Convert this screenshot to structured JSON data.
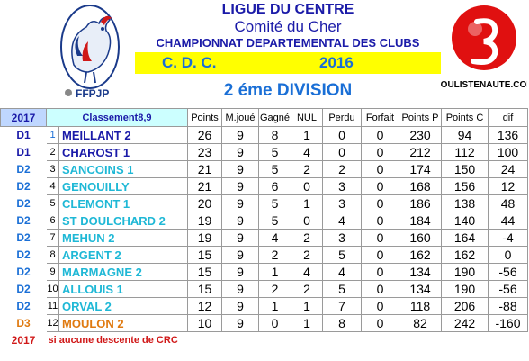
{
  "header": {
    "league": "LIGUE DU CENTRE",
    "committee": "Comité du Cher",
    "championship": "CHAMPIONNAT DEPARTEMENTAL  DES CLUBS",
    "cdc": "C. D. C.",
    "year": "2016",
    "division": "2 éme DIVISION",
    "left_logo_text": "FFPJP",
    "right_logo_text": "BOULISTENAUTE.COM"
  },
  "table": {
    "year_label": "2017",
    "classement_label": "Classement8,9",
    "columns": [
      "Points",
      "M.joué",
      "Gagné",
      "NUL",
      "Perdu",
      "Forfait",
      "Points P",
      "Points C",
      "dif"
    ],
    "rows": [
      {
        "div": "D1",
        "rank": "1",
        "team": "MEILLANT 2",
        "points": "26",
        "mj": "9",
        "g": "8",
        "nul": "1",
        "p": "0",
        "f": "0",
        "pp": "230",
        "pc": "94",
        "dif": "136",
        "color": "#1a1aa8",
        "rank_color": "#1a6fd6",
        "team_color": "#1a1aa8"
      },
      {
        "div": "D1",
        "rank": "2",
        "team": "CHAROST 1",
        "points": "23",
        "mj": "9",
        "g": "5",
        "nul": "4",
        "p": "0",
        "f": "0",
        "pp": "212",
        "pc": "112",
        "dif": "100",
        "color": "#1a1aa8",
        "rank_color": "#000000",
        "team_color": "#1a1aa8"
      },
      {
        "div": "D2",
        "rank": "3",
        "team": "SANCOINS 1",
        "points": "21",
        "mj": "9",
        "g": "5",
        "nul": "2",
        "p": "2",
        "f": "0",
        "pp": "174",
        "pc": "150",
        "dif": "24",
        "color": "#1a6fd6",
        "rank_color": "#000000",
        "team_color": "#1fb8d6"
      },
      {
        "div": "D2",
        "rank": "4",
        "team": "GENOUILLY",
        "points": "21",
        "mj": "9",
        "g": "6",
        "nul": "0",
        "p": "3",
        "f": "0",
        "pp": "168",
        "pc": "156",
        "dif": "12",
        "color": "#1a6fd6",
        "rank_color": "#000000",
        "team_color": "#1fb8d6"
      },
      {
        "div": "D2",
        "rank": "5",
        "team": "CLEMONT 1",
        "points": "20",
        "mj": "9",
        "g": "5",
        "nul": "1",
        "p": "3",
        "f": "0",
        "pp": "186",
        "pc": "138",
        "dif": "48",
        "color": "#1a6fd6",
        "rank_color": "#000000",
        "team_color": "#1fb8d6"
      },
      {
        "div": "D2",
        "rank": "6",
        "team": "ST DOULCHARD 2",
        "points": "19",
        "mj": "9",
        "g": "5",
        "nul": "0",
        "p": "4",
        "f": "0",
        "pp": "184",
        "pc": "140",
        "dif": "44",
        "color": "#1a6fd6",
        "rank_color": "#000000",
        "team_color": "#1fb8d6"
      },
      {
        "div": "D2",
        "rank": "7",
        "team": "MEHUN 2",
        "points": "19",
        "mj": "9",
        "g": "4",
        "nul": "2",
        "p": "3",
        "f": "0",
        "pp": "160",
        "pc": "164",
        "dif": "-4",
        "color": "#1a6fd6",
        "rank_color": "#000000",
        "team_color": "#1fb8d6"
      },
      {
        "div": "D2",
        "rank": "8",
        "team": "ARGENT 2",
        "points": "15",
        "mj": "9",
        "g": "2",
        "nul": "2",
        "p": "5",
        "f": "0",
        "pp": "162",
        "pc": "162",
        "dif": "0",
        "color": "#1a6fd6",
        "rank_color": "#000000",
        "team_color": "#1fb8d6"
      },
      {
        "div": "D2",
        "rank": "9",
        "team": "MARMAGNE 2",
        "points": "15",
        "mj": "9",
        "g": "1",
        "nul": "4",
        "p": "4",
        "f": "0",
        "pp": "134",
        "pc": "190",
        "dif": "-56",
        "color": "#1a6fd6",
        "rank_color": "#000000",
        "team_color": "#1fb8d6"
      },
      {
        "div": "D2",
        "rank": "10",
        "team": "ALLOUIS 1",
        "points": "15",
        "mj": "9",
        "g": "2",
        "nul": "2",
        "p": "5",
        "f": "0",
        "pp": "134",
        "pc": "190",
        "dif": "-56",
        "color": "#1a6fd6",
        "rank_color": "#000000",
        "team_color": "#1fb8d6"
      },
      {
        "div": "D2",
        "rank": "11",
        "team": "ORVAL 2",
        "points": "12",
        "mj": "9",
        "g": "1",
        "nul": "1",
        "p": "7",
        "f": "0",
        "pp": "118",
        "pc": "206",
        "dif": "-88",
        "color": "#1a6fd6",
        "rank_color": "#000000",
        "team_color": "#1fb8d6"
      },
      {
        "div": "D3",
        "rank": "12",
        "team": "MOULON 2",
        "points": "10",
        "mj": "9",
        "g": "0",
        "nul": "1",
        "p": "8",
        "f": "0",
        "pp": "82",
        "pc": "242",
        "dif": "-160",
        "color": "#e07a10",
        "rank_color": "#000000",
        "team_color": "#e07a10"
      }
    ],
    "footer_year": "2017",
    "footer_note": "si aucune descente de CRC"
  }
}
